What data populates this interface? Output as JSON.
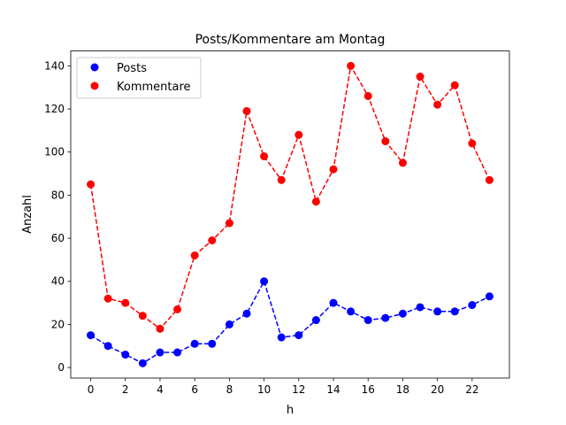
{
  "chart_data": {
    "type": "line",
    "title": "Posts/Kommentare am Montag",
    "xlabel": "h",
    "ylabel": "Anzahl",
    "x": [
      0,
      1,
      2,
      3,
      4,
      5,
      6,
      7,
      8,
      9,
      10,
      11,
      12,
      13,
      14,
      15,
      16,
      17,
      18,
      19,
      20,
      21,
      22,
      23
    ],
    "xticks": [
      0,
      2,
      4,
      6,
      8,
      10,
      12,
      14,
      16,
      18,
      20,
      22
    ],
    "yticks": [
      0,
      20,
      40,
      60,
      80,
      100,
      120,
      140
    ],
    "xlim": [
      -1.15,
      24.15
    ],
    "ylim": [
      -4.9,
      146.9
    ],
    "grid": false,
    "legend_position": "top-left",
    "series": [
      {
        "name": "Posts",
        "color": "#0000ff",
        "style": "dashed with circle markers",
        "values": [
          15,
          10,
          6,
          2,
          7,
          7,
          11,
          11,
          20,
          25,
          40,
          14,
          15,
          22,
          30,
          26,
          22,
          23,
          25,
          28,
          26,
          26,
          29,
          33
        ]
      },
      {
        "name": "Kommentare",
        "color": "#ff0000",
        "style": "dashed with circle markers",
        "values": [
          85,
          32,
          30,
          24,
          18,
          27,
          52,
          59,
          67,
          119,
          98,
          87,
          108,
          77,
          92,
          140,
          126,
          105,
          95,
          135,
          122,
          131,
          104,
          87
        ]
      }
    ]
  }
}
